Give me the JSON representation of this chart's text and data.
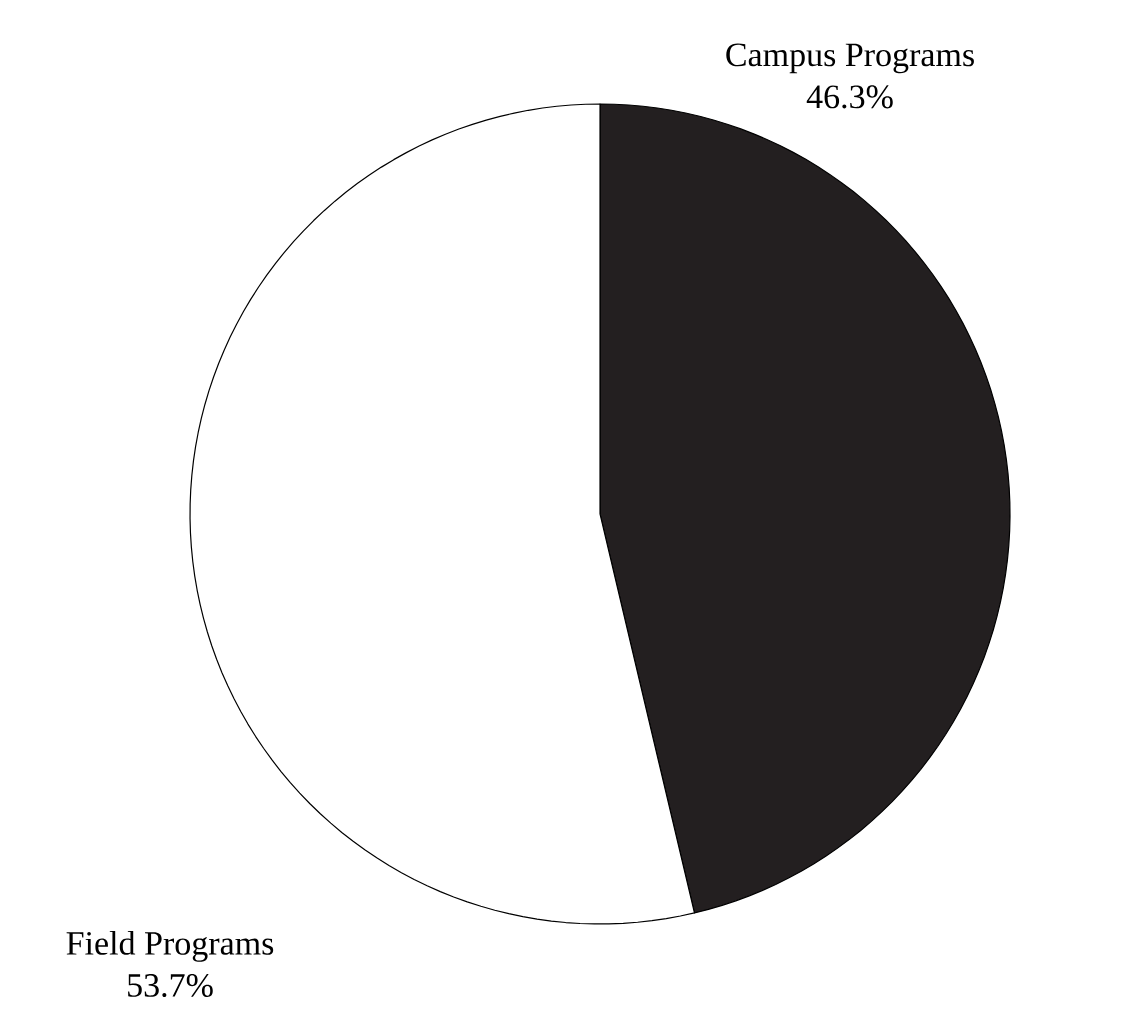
{
  "chart_data": {
    "type": "pie",
    "categories": [
      "Campus Programs",
      "Field Programs"
    ],
    "values": [
      46.3,
      53.7
    ],
    "colors": [
      "#231f20",
      "#ffffff"
    ],
    "value_labels": [
      "46.3%",
      "53.7%"
    ]
  }
}
